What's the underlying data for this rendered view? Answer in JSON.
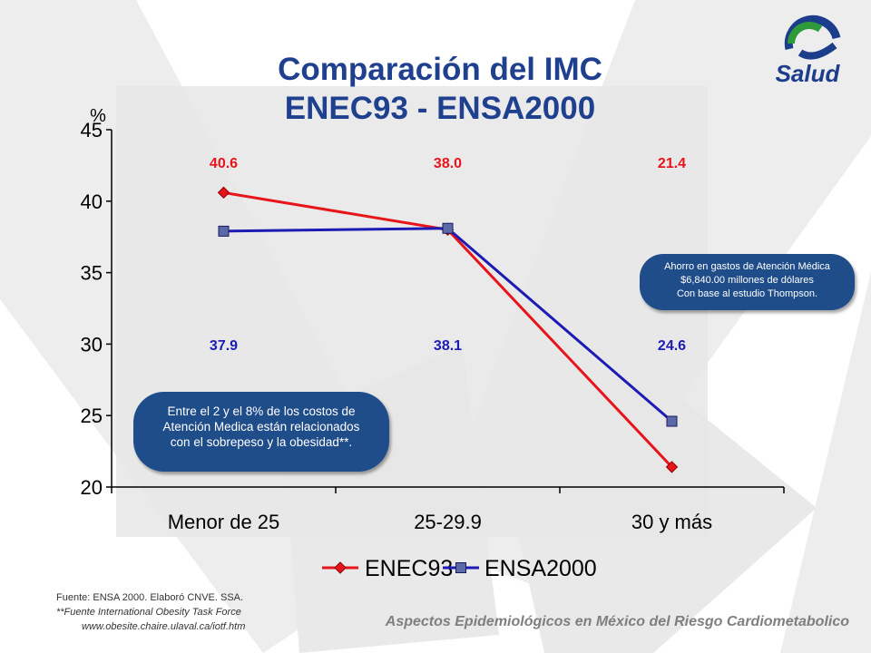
{
  "slide": {
    "title_line1": "Comparación del IMC",
    "title_line2": "ENEC93 - ENSA2000",
    "logo_text": "Salud",
    "bubble_right": [
      "Ahorro en gastos de Atención Médica",
      "$6,840.00 millones de dólares",
      "Con base al estudio Thompson."
    ],
    "bubble_left": [
      "Entre el 2 y el 8% de los costos de",
      "Atención Medica están  relacionados",
      "con el sobrepeso y la  obesidad**."
    ],
    "footer_source": "Fuente: ENSA 2000. Elaboró CNVE. SSA.",
    "footer_source2": "**Fuente International Obesity Task Force",
    "footer_url": "www.obesite.chaire.ulaval.ca/iotf.htm",
    "bottom_caption": "Aspectos Epidemiológicos en México del Riesgo Cardiometabolico"
  },
  "colors": {
    "title": "#1f3f8f",
    "enec93": "#e8141b",
    "ensa2000": "#1c1cb4",
    "plot_bg": "#e6e6e6",
    "bubble": "#1f4d8a",
    "logo_blue": "#1c3d8c",
    "logo_green": "#2e9a3a"
  },
  "chart_data": {
    "type": "line",
    "categories": [
      "Menor de 25",
      "25-29.9",
      "30 y más"
    ],
    "series": [
      {
        "name": "ENEC93",
        "values": [
          40.6,
          38.0,
          21.4
        ],
        "labels": [
          "40.6",
          "38.0",
          "21.4"
        ],
        "marker": "diamond"
      },
      {
        "name": "ENSA2000",
        "values": [
          37.9,
          38.1,
          24.6
        ],
        "labels": [
          "37.9",
          "38.1",
          "24.6"
        ],
        "marker": "square"
      }
    ],
    "ylabel": "%",
    "ylim": [
      20,
      45
    ],
    "yticks": [
      20,
      25,
      30,
      35,
      40,
      45
    ],
    "ytick_labels": [
      "20",
      "25",
      "30",
      "35",
      "40",
      "45"
    ],
    "grid": false,
    "legend": "bottom"
  }
}
